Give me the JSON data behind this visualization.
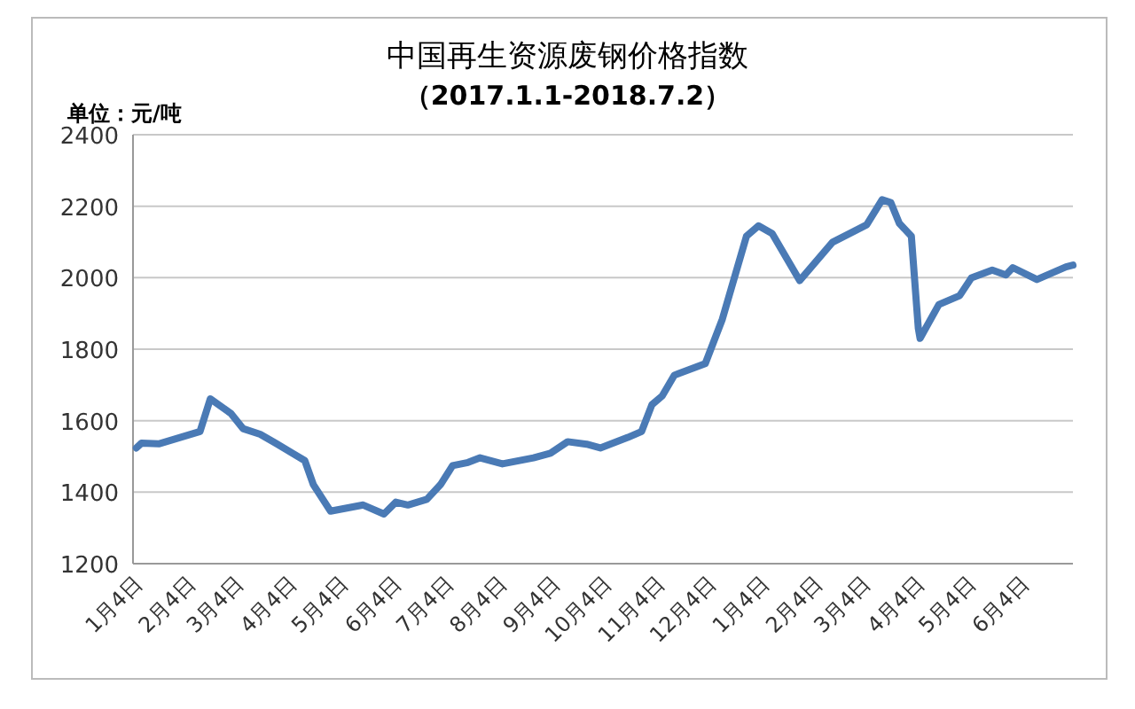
{
  "chart_data": {
    "type": "line",
    "title": "中国再生资源废钢价格指数",
    "subtitle": "（2017.1.1-2018.7.2）",
    "ylabel": "单位：元/吨",
    "xlim": [
      "2017-01-01",
      "2018-07-02"
    ],
    "xticks": [
      {
        "value": "2017-01-04",
        "label": "1月4日"
      },
      {
        "value": "2017-02-04",
        "label": "2月4日"
      },
      {
        "value": "2017-03-04",
        "label": "3月4日"
      },
      {
        "value": "2017-04-04",
        "label": "4月4日"
      },
      {
        "value": "2017-05-04",
        "label": "5月4日"
      },
      {
        "value": "2017-06-04",
        "label": "6月4日"
      },
      {
        "value": "2017-07-04",
        "label": "7月4日"
      },
      {
        "value": "2017-08-04",
        "label": "8月4日"
      },
      {
        "value": "2017-09-04",
        "label": "9月4日"
      },
      {
        "value": "2017-10-04",
        "label": "10月4日"
      },
      {
        "value": "2017-11-04",
        "label": "11月4日"
      },
      {
        "value": "2017-12-04",
        "label": "12月4日"
      },
      {
        "value": "2018-01-04",
        "label": "1月4日"
      },
      {
        "value": "2018-02-04",
        "label": "2月4日"
      },
      {
        "value": "2018-03-04",
        "label": "3月4日"
      },
      {
        "value": "2018-04-04",
        "label": "4月4日"
      },
      {
        "value": "2018-05-04",
        "label": "5月4日"
      },
      {
        "value": "2018-06-04",
        "label": "6月4日"
      }
    ],
    "ylim": [
      1200,
      2400
    ],
    "yticks": [
      1200,
      1400,
      1600,
      1800,
      2000,
      2200,
      2400
    ],
    "grid": "y",
    "x": [
      "2017-01-03",
      "2017-01-06",
      "2017-01-16",
      "2017-02-09",
      "2017-02-15",
      "2017-02-27",
      "2017-03-06",
      "2017-03-16",
      "2017-03-25",
      "2017-04-11",
      "2017-04-16",
      "2017-04-26",
      "2017-05-15",
      "2017-05-27",
      "2017-06-03",
      "2017-06-10",
      "2017-06-21",
      "2017-06-29",
      "2017-07-06",
      "2017-07-15",
      "2017-07-22",
      "2017-08-04",
      "2017-08-22",
      "2017-09-01",
      "2017-09-11",
      "2017-09-22",
      "2017-09-30",
      "2017-10-16",
      "2017-10-24",
      "2017-10-30",
      "2017-11-05",
      "2017-11-12",
      "2017-11-30",
      "2017-12-10",
      "2017-12-24",
      "2017-12-31",
      "2018-01-08",
      "2018-01-24",
      "2018-02-12",
      "2018-03-04",
      "2018-03-13",
      "2018-03-18",
      "2018-03-23",
      "2018-03-30",
      "2018-04-03",
      "2018-04-04",
      "2018-04-15",
      "2018-04-27",
      "2018-05-04",
      "2018-05-16",
      "2018-05-24",
      "2018-05-28",
      "2018-06-11",
      "2018-06-28",
      "2018-07-02"
    ],
    "series": [
      {
        "color": "#4a7ab5",
        "values": [
          1524,
          1537,
          1535,
          1570,
          1661,
          1620,
          1578,
          1562,
          1537,
          1488,
          1421,
          1347,
          1364,
          1339,
          1372,
          1364,
          1380,
          1421,
          1474,
          1483,
          1496,
          1479,
          1496,
          1509,
          1541,
          1534,
          1524,
          1553,
          1570,
          1645,
          1669,
          1727,
          1760,
          1884,
          2116,
          2145,
          2124,
          1992,
          2099,
          2148,
          2218,
          2210,
          2152,
          2116,
          1859,
          1830,
          1925,
          1950,
          2000,
          2021,
          2008,
          2028,
          1995,
          2030,
          2035
        ]
      }
    ]
  }
}
